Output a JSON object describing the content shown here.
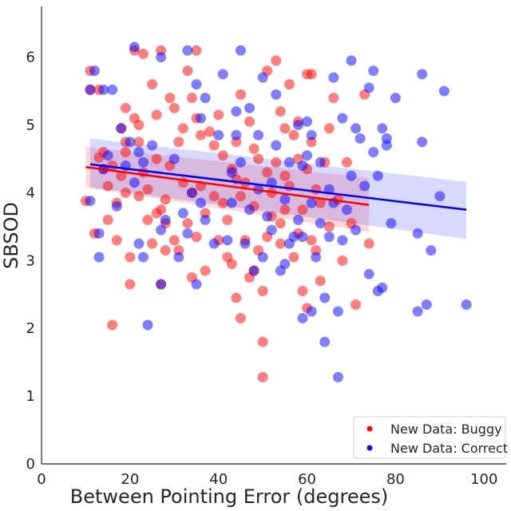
{
  "chart_data": {
    "type": "scatter",
    "title": "",
    "xlabel": "Between Pointing Error (degrees)",
    "ylabel": "SBSOD",
    "xlim": [
      0,
      105
    ],
    "ylim": [
      0,
      6.75
    ],
    "xticks": [
      0,
      20,
      40,
      60,
      80,
      100
    ],
    "yticks": [
      0,
      1,
      2,
      3,
      4,
      5,
      6
    ],
    "grid": false,
    "legend_position": "bottom-right",
    "series": [
      {
        "name": "New Data: Buggy",
        "color": "#ff0000",
        "points": [
          [
            10,
            3.88
          ],
          [
            11,
            5.8
          ],
          [
            11,
            5.52
          ],
          [
            12,
            3.4
          ],
          [
            13,
            5.52
          ],
          [
            13,
            4.52
          ],
          [
            14,
            4.6
          ],
          [
            14,
            4.35
          ],
          [
            15,
            3.6
          ],
          [
            15,
            4.1
          ],
          [
            16,
            2.05
          ],
          [
            16,
            4.4
          ],
          [
            17,
            3.3
          ],
          [
            17,
            3.85
          ],
          [
            18,
            4.95
          ],
          [
            18,
            4.25
          ],
          [
            19,
            5.25
          ],
          [
            19,
            4.6
          ],
          [
            19,
            4.0
          ],
          [
            20,
            3.05
          ],
          [
            20,
            2.65
          ],
          [
            21,
            6.1
          ],
          [
            21,
            5.1
          ],
          [
            22,
            5.0
          ],
          [
            22,
            4.75
          ],
          [
            22,
            3.95
          ],
          [
            23,
            6.05
          ],
          [
            23,
            4.3
          ],
          [
            24,
            3.6
          ],
          [
            24,
            4.05
          ],
          [
            25,
            5.6
          ],
          [
            25,
            3.25
          ],
          [
            26,
            4.5
          ],
          [
            26,
            3.7
          ],
          [
            26,
            5.15
          ],
          [
            27,
            6.1
          ],
          [
            27,
            3.75
          ],
          [
            28,
            3.9
          ],
          [
            28,
            3.55
          ],
          [
            28,
            3.15
          ],
          [
            29,
            5.4
          ],
          [
            29,
            4.4
          ],
          [
            30,
            5.25
          ],
          [
            30,
            3.3
          ],
          [
            31,
            3.15
          ],
          [
            31,
            4.75
          ],
          [
            32,
            4.95
          ],
          [
            32,
            4.15
          ],
          [
            33,
            5.8
          ],
          [
            33,
            3.55
          ],
          [
            34,
            5.4
          ],
          [
            34,
            4.0
          ],
          [
            34,
            2.75
          ],
          [
            35,
            6.1
          ],
          [
            35,
            5.1
          ],
          [
            35,
            3.35
          ],
          [
            36,
            4.85
          ],
          [
            36,
            4.1
          ],
          [
            37,
            2.85
          ],
          [
            37,
            3.7
          ],
          [
            38,
            4.9
          ],
          [
            39,
            4.7
          ],
          [
            39,
            3.95
          ],
          [
            40,
            5.15
          ],
          [
            40,
            3.3
          ],
          [
            41,
            4.55
          ],
          [
            41,
            3.85
          ],
          [
            42,
            3.6
          ],
          [
            42,
            3.05
          ],
          [
            43,
            4.35
          ],
          [
            43,
            2.95
          ],
          [
            44,
            4.75
          ],
          [
            44,
            4.2
          ],
          [
            44,
            2.45
          ],
          [
            45,
            5.45
          ],
          [
            45,
            3.95
          ],
          [
            45,
            2.15
          ],
          [
            46,
            3.3
          ],
          [
            46,
            4.15
          ],
          [
            47,
            5.05
          ],
          [
            47,
            2.75
          ],
          [
            48,
            4.65
          ],
          [
            48,
            3.8
          ],
          [
            48,
            2.85
          ],
          [
            49,
            4.5
          ],
          [
            49,
            3.15
          ],
          [
            50,
            2.55
          ],
          [
            50,
            1.8
          ],
          [
            50,
            1.28
          ],
          [
            51,
            5.8
          ],
          [
            51,
            4.3
          ],
          [
            51,
            3.35
          ],
          [
            52,
            4.0
          ],
          [
            52,
            3.65
          ],
          [
            53,
            5.95
          ],
          [
            53,
            4.45
          ],
          [
            54,
            5.2
          ],
          [
            54,
            3.55
          ],
          [
            54,
            3.25
          ],
          [
            55,
            4.95
          ],
          [
            55,
            4.25
          ],
          [
            55,
            3.75
          ],
          [
            56,
            5.6
          ],
          [
            56,
            4.1
          ],
          [
            57,
            4.85
          ],
          [
            57,
            3.05
          ],
          [
            58,
            5.05
          ],
          [
            58,
            4.5
          ],
          [
            58,
            3.4
          ],
          [
            59,
            2.55
          ],
          [
            59,
            3.75
          ],
          [
            60,
            5.75
          ],
          [
            60,
            4.35
          ],
          [
            60,
            2.3
          ],
          [
            61,
            4.75
          ],
          [
            61,
            3.3
          ],
          [
            61,
            5.75
          ],
          [
            62,
            4.05
          ],
          [
            62,
            3.15
          ],
          [
            63,
            2.7
          ],
          [
            63,
            3.85
          ],
          [
            64,
            4.45
          ],
          [
            65,
            4.95
          ],
          [
            65,
            3.5
          ],
          [
            66,
            5.4
          ],
          [
            67,
            3.9
          ],
          [
            68,
            3.0
          ],
          [
            69,
            4.45
          ],
          [
            70,
            3.55
          ],
          [
            71,
            2.35
          ],
          [
            73,
            5.45
          ],
          [
            74,
            3.25
          ],
          [
            27,
            2.65
          ],
          [
            19,
            4.75
          ]
        ]
      },
      {
        "name": "New Data: Correct",
        "color": "#0000ff",
        "points": [
          [
            11,
            5.52
          ],
          [
            11,
            3.88
          ],
          [
            12,
            5.8
          ],
          [
            13,
            3.4
          ],
          [
            13,
            3.05
          ],
          [
            14,
            5.52
          ],
          [
            14,
            4.35
          ],
          [
            15,
            4.55
          ],
          [
            16,
            5.52
          ],
          [
            17,
            3.8
          ],
          [
            18,
            4.95
          ],
          [
            19,
            4.4
          ],
          [
            20,
            4.75
          ],
          [
            21,
            6.15
          ],
          [
            21,
            4.15
          ],
          [
            22,
            4.6
          ],
          [
            22,
            3.25
          ],
          [
            23,
            4.45
          ],
          [
            23,
            3.05
          ],
          [
            24,
            2.05
          ],
          [
            25,
            4.7
          ],
          [
            27,
            6.0
          ],
          [
            27,
            3.45
          ],
          [
            27,
            2.65
          ],
          [
            28,
            3.6
          ],
          [
            30,
            4.5
          ],
          [
            31,
            3.05
          ],
          [
            32,
            3.7
          ],
          [
            33,
            6.1
          ],
          [
            33,
            3.4
          ],
          [
            34,
            4.0
          ],
          [
            35,
            5.6
          ],
          [
            35,
            2.65
          ],
          [
            36,
            5.1
          ],
          [
            36,
            3.85
          ],
          [
            37,
            5.4
          ],
          [
            37,
            3.6
          ],
          [
            39,
            3.25
          ],
          [
            40,
            4.85
          ],
          [
            41,
            5.75
          ],
          [
            42,
            3.3
          ],
          [
            43,
            4.3
          ],
          [
            43,
            3.85
          ],
          [
            44,
            5.2
          ],
          [
            44,
            4.85
          ],
          [
            45,
            6.1
          ],
          [
            45,
            4.45
          ],
          [
            46,
            3.25
          ],
          [
            47,
            5.25
          ],
          [
            47,
            3.75
          ],
          [
            48,
            2.85
          ],
          [
            49,
            4.85
          ],
          [
            49,
            4.05
          ],
          [
            50,
            5.7
          ],
          [
            50,
            3.05
          ],
          [
            51,
            3.65
          ],
          [
            52,
            4.15
          ],
          [
            52,
            3.45
          ],
          [
            53,
            5.45
          ],
          [
            53,
            4.7
          ],
          [
            54,
            2.85
          ],
          [
            55,
            3.9
          ],
          [
            55,
            2.95
          ],
          [
            56,
            4.45
          ],
          [
            56,
            3.25
          ],
          [
            57,
            3.35
          ],
          [
            58,
            5.0
          ],
          [
            58,
            3.6
          ],
          [
            59,
            4.4
          ],
          [
            59,
            3.35
          ],
          [
            59,
            2.15
          ],
          [
            60,
            4.55
          ],
          [
            60,
            5.05
          ],
          [
            61,
            4.85
          ],
          [
            61,
            3.85
          ],
          [
            61,
            2.25
          ],
          [
            62,
            3.05
          ],
          [
            63,
            4.45
          ],
          [
            63,
            3.55
          ],
          [
            64,
            1.8
          ],
          [
            64,
            2.45
          ],
          [
            65,
            4.05
          ],
          [
            65,
            3.35
          ],
          [
            66,
            5.7
          ],
          [
            66,
            3.85
          ],
          [
            67,
            1.28
          ],
          [
            67,
            2.25
          ],
          [
            68,
            5.1
          ],
          [
            68,
            3.3
          ],
          [
            69,
            3.75
          ],
          [
            70,
            5.95
          ],
          [
            70,
            4.25
          ],
          [
            71,
            4.95
          ],
          [
            71,
            3.45
          ],
          [
            72,
            4.8
          ],
          [
            73,
            4.1
          ],
          [
            74,
            5.55
          ],
          [
            74,
            2.8
          ],
          [
            75,
            5.8
          ],
          [
            75,
            4.6
          ],
          [
            76,
            4.25
          ],
          [
            76,
            2.55
          ],
          [
            77,
            4.95
          ],
          [
            77,
            2.6
          ],
          [
            78,
            4.8
          ],
          [
            78,
            4.7
          ],
          [
            79,
            3.55
          ],
          [
            80,
            5.4
          ],
          [
            85,
            2.25
          ],
          [
            85,
            3.4
          ],
          [
            86,
            5.75
          ],
          [
            86,
            4.75
          ],
          [
            87,
            2.35
          ],
          [
            88,
            3.15
          ],
          [
            90,
            3.95
          ],
          [
            91,
            5.5
          ],
          [
            96,
            2.35
          ]
        ]
      }
    ],
    "fits": [
      {
        "series": "New Data: Buggy",
        "color": "#ff0000",
        "x": [
          10,
          74
        ],
        "y": [
          4.38,
          3.82
        ],
        "ci_low": [
          4.08,
          3.42
        ],
        "ci_high": [
          4.68,
          4.22
        ]
      },
      {
        "series": "New Data: Correct",
        "color": "#0000ff",
        "x": [
          11,
          96
        ],
        "y": [
          4.42,
          3.75
        ],
        "ci_low": [
          4.08,
          3.32
        ],
        "ci_high": [
          4.8,
          4.16
        ]
      }
    ]
  }
}
